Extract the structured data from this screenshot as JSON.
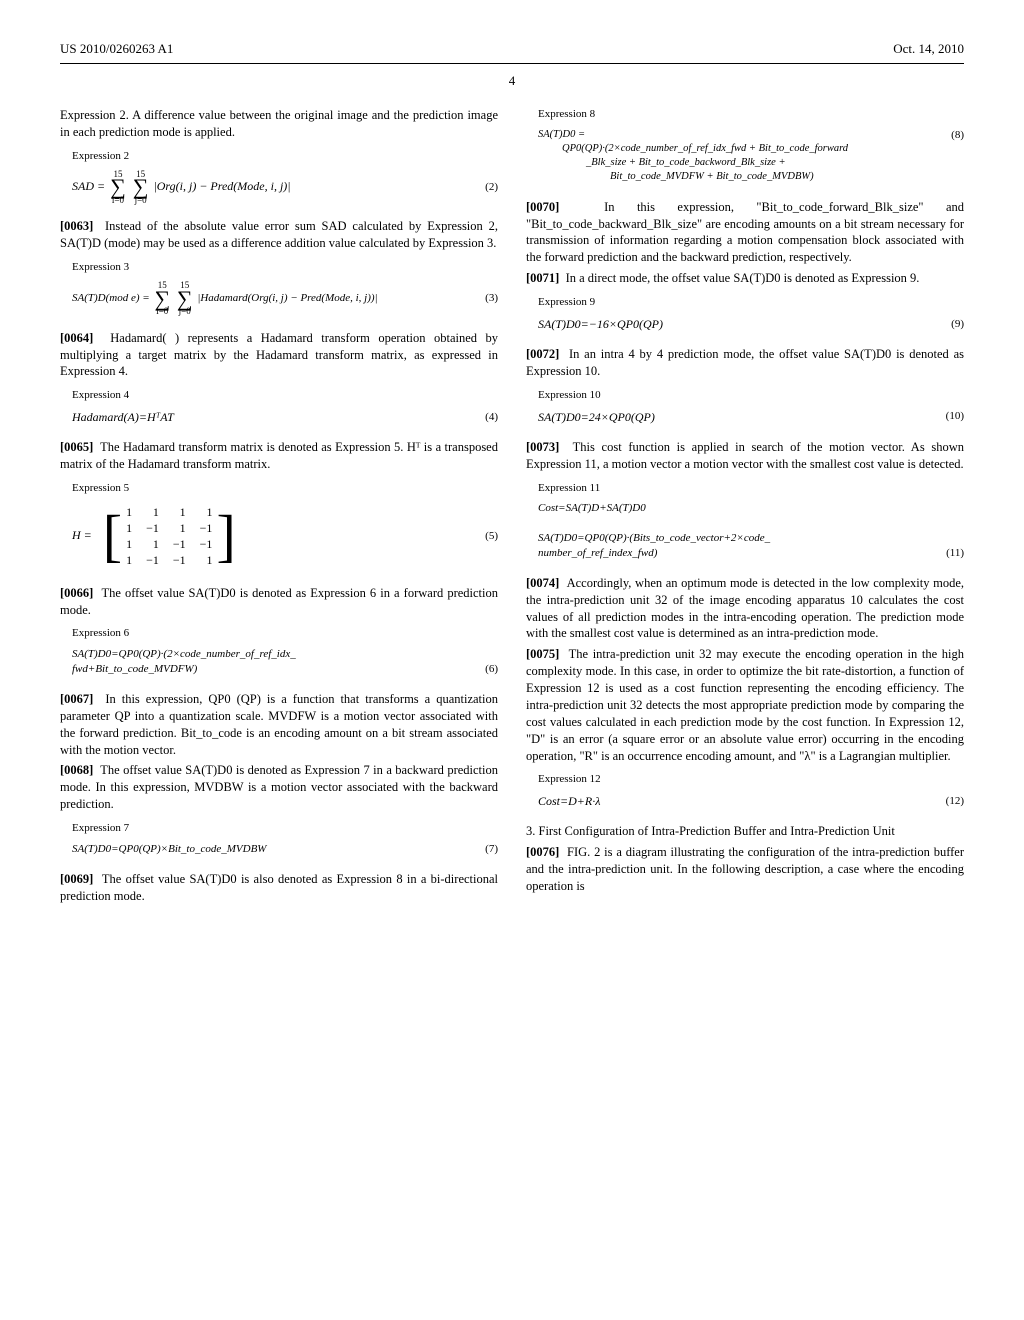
{
  "header": {
    "pub_number": "US 2010/0260263 A1",
    "date": "Oct. 14, 2010",
    "page_number": "4"
  },
  "col_left": {
    "intro": "Expression 2. A difference value between the original image and the prediction image in each prediction mode is applied.",
    "expr2_label": "Expression 2",
    "expr2_lhs": "SAD =",
    "sum1_top": "15",
    "sum1_bot": "i=0",
    "sum2_top": "15",
    "sum2_bot": "j=0",
    "expr2_body": "|Org(i, j) − Pred(Mode, i, j)|",
    "eq2": "(2)",
    "p0063_num": "[0063]",
    "p0063": "Instead of the absolute value error sum SAD calculated by Expression 2, SA(T)D (mode) may be used as a difference addition value calculated by Expression 3.",
    "expr3_label": "Expression 3",
    "expr3_lhs": "SA(T)D(mod e) =",
    "expr3_body": "|Hadamard(Org(i, j) − Pred(Mode, i, j))|",
    "eq3": "(3)",
    "p0064_num": "[0064]",
    "p0064": "Hadamard( ) represents a Hadamard transform operation obtained by multiplying a target matrix by the Hadamard transform matrix, as expressed in Expression 4.",
    "expr4_label": "Expression 4",
    "expr4": "Hadamard(A)=HᵀAT",
    "eq4": "(4)",
    "p0065_num": "[0065]",
    "p0065": "The Hadamard transform matrix is denoted as Expression 5. Hᵀ is a transposed matrix of the Hadamard transform matrix.",
    "expr5_label": "Expression 5",
    "expr5_lhs": "H =",
    "matrix": [
      [
        "1",
        "1",
        "1",
        "1"
      ],
      [
        "1",
        "−1",
        "1",
        "−1"
      ],
      [
        "1",
        "1",
        "−1",
        "−1"
      ],
      [
        "1",
        "−1",
        "−1",
        "1"
      ]
    ],
    "eq5": "(5)",
    "p0066_num": "[0066]",
    "p0066": "The offset value SA(T)D0 is denoted as Expression 6 in a forward prediction mode.",
    "expr6_label": "Expression 6",
    "expr6a": "SA(T)D0=QP0(QP)·(2×code_number_of_ref_idx_",
    "expr6b": "fwd+Bit_to_code_MVDFW)",
    "eq6": "(6)",
    "p0067_num": "[0067]",
    "p0067": "In this expression, QP0 (QP) is a function that transforms a quantization parameter QP into a quantization scale. MVDFW is a motion vector associated with the forward prediction. Bit_to_code is an encoding amount on a bit stream associated with the motion vector.",
    "p0068_num": "[0068]",
    "p0068": "The offset value SA(T)D0 is denoted as Expression 7 in a backward prediction mode. In this expression, MVDBW is a motion vector associated with the backward prediction.",
    "expr7_label": "Expression 7",
    "expr7": "SA(T)D0=QP0(QP)×Bit_to_code_MVDBW",
    "eq7": "(7)",
    "p0069_num": "[0069]",
    "p0069": "The offset value SA(T)D0 is also denoted as Expression 8 in a bi-directional prediction mode."
  },
  "col_right": {
    "expr8_label": "Expression 8",
    "expr8_l1": "SA(T)D0 =",
    "expr8_l2": "QP0(QP)·(2×code_number_of_ref_idx_fwd + Bit_to_code_forward",
    "expr8_l3": "_Blk_size + Bit_to_code_backword_Blk_size +",
    "expr8_l4": "Bit_to_code_MVDFW + Bit_to_code_MVDBW)",
    "eq8": "(8)",
    "p0070_num": "[0070]",
    "p0070": "In this expression, \"Bit_to_code_forward_Blk_size\" and \"Bit_to_code_backward_Blk_size\" are encoding amounts on a bit stream necessary for transmission of information regarding a motion compensation block associated with the forward prediction and the backward prediction, respectively.",
    "p0071_num": "[0071]",
    "p0071": "In a direct mode, the offset value SA(T)D0 is denoted as Expression 9.",
    "expr9_label": "Expression 9",
    "expr9": "SA(T)D0=−16×QP0(QP)",
    "eq9": "(9)",
    "p0072_num": "[0072]",
    "p0072": "In an intra 4 by 4 prediction mode, the offset value SA(T)D0 is denoted as Expression 10.",
    "expr10_label": "Expression 10",
    "expr10": "SA(T)D0=24×QP0(QP)",
    "eq10": "(10)",
    "p0073_num": "[0073]",
    "p0073": "This cost function is applied in search of the motion vector. As shown Expression 11, a motion vector a motion vector with the smallest cost value is detected.",
    "expr11_label": "Expression 11",
    "expr11a": "Cost=SA(T)D+SA(T)D0",
    "expr11b": "SA(T)D0=QP0(QP)·(Bits_to_code_vector+2×code_",
    "expr11c": "number_of_ref_index_fwd)",
    "eq11": "(11)",
    "p0074_num": "[0074]",
    "p0074": "Accordingly, when an optimum mode is detected in the low complexity mode, the intra-prediction unit 32 of the image encoding apparatus 10 calculates the cost values of all prediction modes in the intra-encoding operation. The prediction mode with the smallest cost value is determined as an intra-prediction mode.",
    "p0075_num": "[0075]",
    "p0075": "The intra-prediction unit 32 may execute the encoding operation in the high complexity mode. In this case, in order to optimize the bit rate-distortion, a function of Expression 12 is used as a cost function representing the encoding efficiency. The intra-prediction unit 32 detects the most appropriate prediction mode by comparing the cost values calculated in each prediction mode by the cost function. In Expression 12, \"D\" is an error (a square error or an absolute value error) occurring in the encoding operation, \"R\" is an occurrence encoding amount, and \"λ\" is a Lagrangian multiplier.",
    "expr12_label": "Expression 12",
    "expr12": "Cost=D+R·λ",
    "eq12": "(12)",
    "section3": "3. First Configuration of Intra-Prediction Buffer and Intra-Prediction Unit",
    "p0076_num": "[0076]",
    "p0076": "FIG. 2 is a diagram illustrating the configuration of the intra-prediction buffer and the intra-prediction unit. In the following description, a case where the encoding operation is"
  }
}
